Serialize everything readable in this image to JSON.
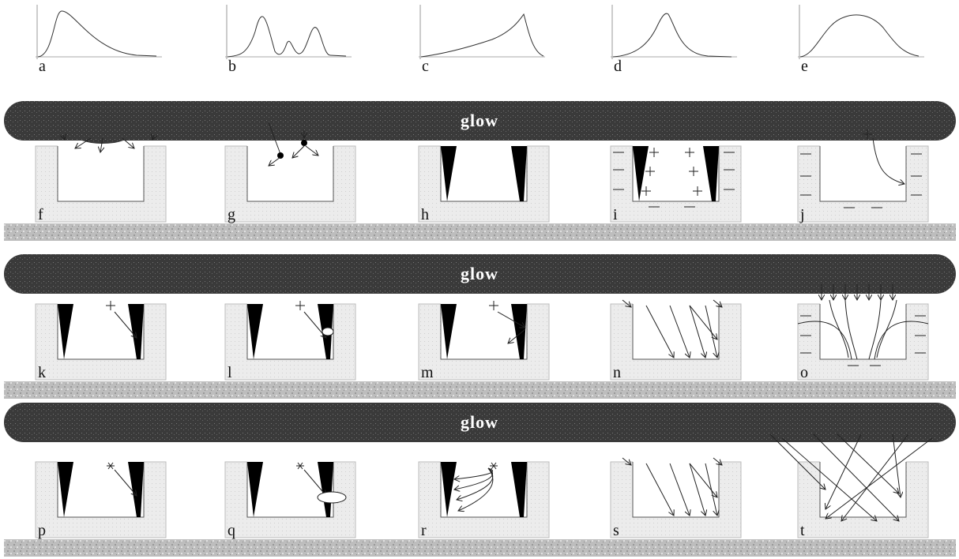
{
  "curves": {
    "labels": [
      "a",
      "b",
      "c",
      "d",
      "e"
    ]
  },
  "glow_bars": [
    {
      "label": "glow"
    },
    {
      "label": "glow"
    },
    {
      "label": "glow"
    }
  ],
  "panels": {
    "labels": [
      "f",
      "g",
      "h",
      "i",
      "j",
      "k",
      "l",
      "m",
      "n",
      "o",
      "p",
      "q",
      "r",
      "s",
      "t"
    ]
  }
}
